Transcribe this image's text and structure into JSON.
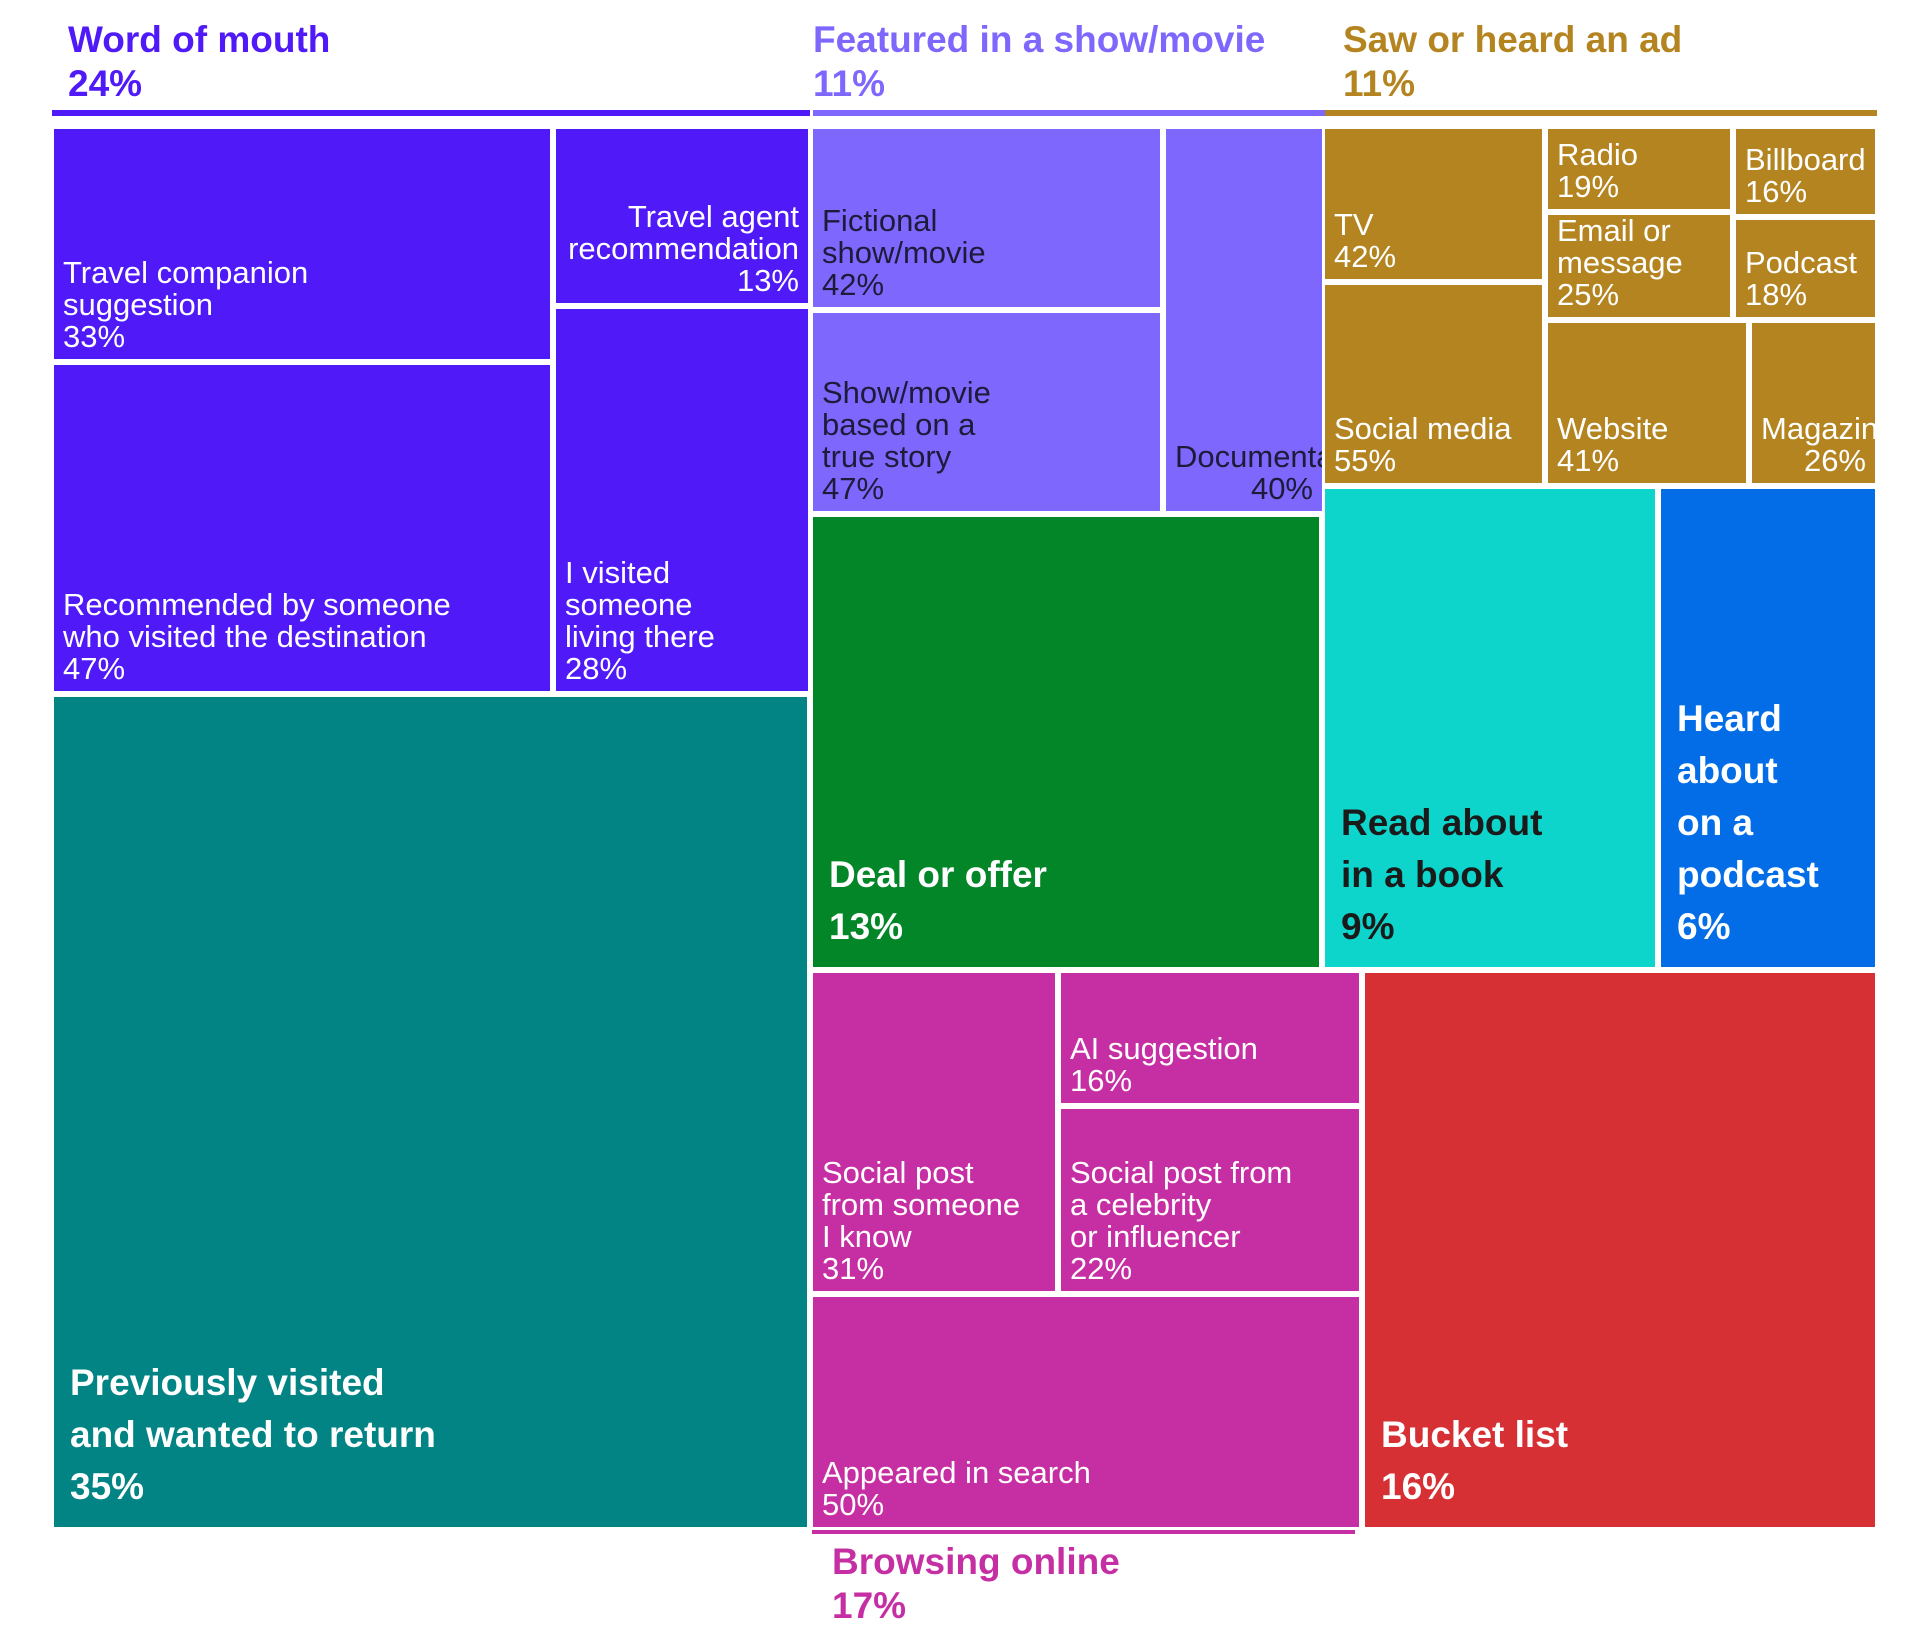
{
  "chart_data": {
    "type": "treemap",
    "title": "",
    "unit": "%",
    "groups": [
      {
        "id": "word",
        "name": "Word of mouth",
        "value": 24,
        "color": "#4f19f8",
        "text_color": "#ffffff",
        "header_color": "#4f19f8",
        "children": [
          {
            "id": "w1",
            "name": "Travel companion\nsuggestion",
            "value": 33
          },
          {
            "id": "w2",
            "name": "Travel agent\nrecommendation",
            "value": 13
          },
          {
            "id": "w3",
            "name": "Recommended by someone\nwho visited the destination",
            "value": 47
          },
          {
            "id": "w4",
            "name": "I visited\nsomeone\nliving there",
            "value": 28
          }
        ]
      },
      {
        "id": "show",
        "name": "Featured in a show/movie",
        "value": 11,
        "color": "#7e67fd",
        "text_color": "#1c1c3a",
        "header_color": "#7e67fd",
        "children": [
          {
            "id": "s1",
            "name": "Fictional\nshow/movie",
            "value": 42
          },
          {
            "id": "s2",
            "name": "Show/movie\nbased on a\ntrue story",
            "value": 47
          },
          {
            "id": "s3",
            "name": "Documentary",
            "value": 40
          }
        ]
      },
      {
        "id": "ad",
        "name": "Saw or heard an ad",
        "value": 11,
        "color": "#b3841f",
        "text_color": "#ffffff",
        "header_color": "#b3841f",
        "children": [
          {
            "id": "a1",
            "name": "TV",
            "value": 42
          },
          {
            "id": "a2",
            "name": "Radio",
            "value": 19
          },
          {
            "id": "a3",
            "name": "Billboard",
            "value": 16
          },
          {
            "id": "a4",
            "name": "Email or\nmessage",
            "value": 25
          },
          {
            "id": "a5",
            "name": "Podcast",
            "value": 18
          },
          {
            "id": "a6",
            "name": "Social media",
            "value": 55
          },
          {
            "id": "a7",
            "name": "Website",
            "value": 41
          },
          {
            "id": "a8",
            "name": "Magazine",
            "value": 26
          }
        ]
      },
      {
        "id": "browse",
        "name": "Browsing online",
        "value": 17,
        "color": "#c62fa3",
        "text_color": "#ffffff",
        "header_color": "#c62fa3",
        "children": [
          {
            "id": "b1",
            "name": "Social post\nfrom someone\nI know",
            "value": 31
          },
          {
            "id": "b2",
            "name": "AI suggestion",
            "value": 16
          },
          {
            "id": "b3",
            "name": "Social post from\na celebrity\nor influencer",
            "value": 22
          },
          {
            "id": "b4",
            "name": "Appeared in search",
            "value": 50
          }
        ]
      }
    ],
    "singles": [
      {
        "id": "prev",
        "name": "Previously visited\nand wanted to return",
        "value": 35,
        "color": "#028384",
        "text_color": "#ffffff"
      },
      {
        "id": "deal",
        "name": "Deal or offer",
        "value": 13,
        "color": "#038628",
        "text_color": "#ffffff"
      },
      {
        "id": "book",
        "name": "Read about\nin a book",
        "value": 9,
        "color": "#0ed5cc",
        "text_color": "#1a1a1a"
      },
      {
        "id": "podcast",
        "name": "Heard\nabout\non a\npodcast",
        "value": 6,
        "color": "#026de6",
        "text_color": "#ffffff"
      },
      {
        "id": "bucket",
        "name": "Bucket list",
        "value": 16,
        "color": "#d62f34",
        "text_color": "#ffffff"
      }
    ]
  }
}
